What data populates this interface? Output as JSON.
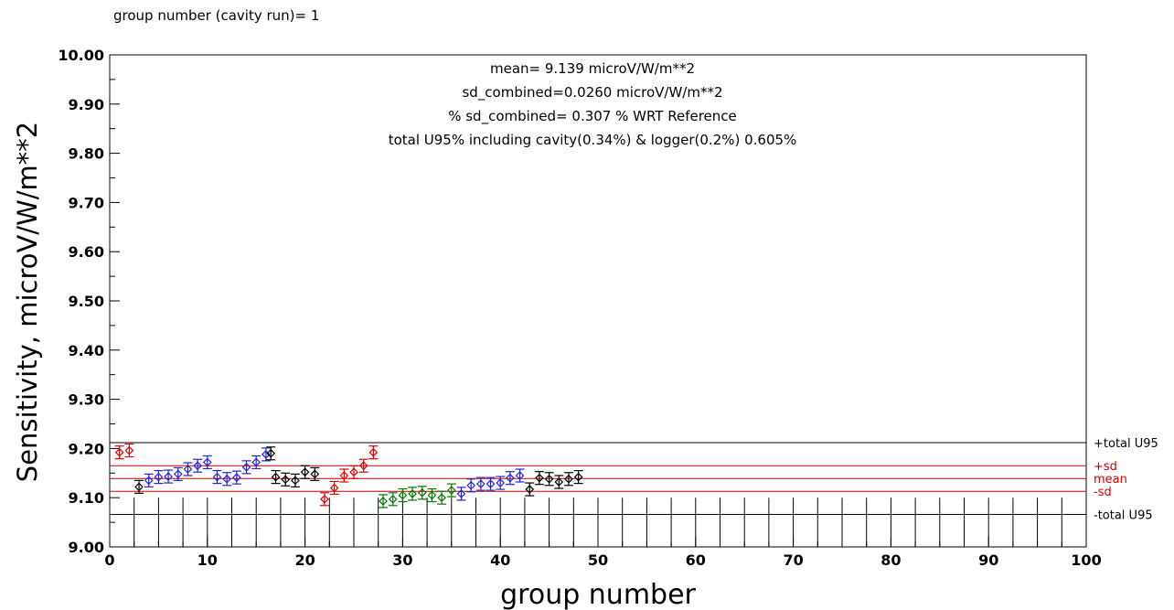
{
  "header": {
    "title": "group number (cavity run)= 1"
  },
  "stats": [
    "mean= 9.139 microV/W/m**2",
    "sd_combined=0.0260 microV/W/m**2",
    "% sd_combined= 0.307 % WRT Reference",
    "total U95% including cavity(0.34%) & logger(0.2%) 0.605%"
  ],
  "chart_data": {
    "type": "scatter",
    "title": "",
    "xlabel": "group number",
    "ylabel": "Sensitivity, microV/W/m**2",
    "xlim": [
      0,
      100
    ],
    "ylim": [
      9.0,
      10.0
    ],
    "x_ticks": [
      0,
      10,
      20,
      30,
      40,
      50,
      60,
      70,
      80,
      90,
      100
    ],
    "y_ticks": [
      9.0,
      9.1,
      9.2,
      9.3,
      9.4,
      9.5,
      9.6,
      9.7,
      9.8,
      9.9,
      10.0
    ],
    "x_tick_labels": [
      "0",
      "10",
      "20",
      "30",
      "40",
      "50",
      "60",
      "70",
      "80",
      "90",
      "100"
    ],
    "y_tick_labels": [
      "9.00",
      "9.10",
      "9.20",
      "9.30",
      "9.40",
      "9.50",
      "9.60",
      "9.70",
      "9.80",
      "9.90",
      "10.00"
    ],
    "grid": false,
    "reference_lines": [
      {
        "label": "+total U95",
        "value": 9.212,
        "color": "#000000"
      },
      {
        "label": "+sd",
        "value": 9.165,
        "color": "#cc0000"
      },
      {
        "label": "mean",
        "value": 9.139,
        "color": "#cc0000"
      },
      {
        "label": "-sd",
        "value": 9.113,
        "color": "#cc0000"
      },
      {
        "label": "-total U95",
        "value": 9.066,
        "color": "#000000"
      }
    ],
    "series": [
      {
        "color": "#e00000",
        "points": [
          [
            1,
            9.192
          ],
          [
            2,
            9.196
          ]
        ]
      },
      {
        "color": "#000000",
        "points": [
          [
            3,
            9.122
          ]
        ]
      },
      {
        "color": "#2222dd",
        "points": [
          [
            4,
            9.135
          ],
          [
            5,
            9.142
          ],
          [
            6,
            9.143
          ],
          [
            7,
            9.148
          ],
          [
            8,
            9.158
          ],
          [
            9,
            9.165
          ],
          [
            10,
            9.172
          ],
          [
            11,
            9.142
          ],
          [
            12,
            9.138
          ],
          [
            13,
            9.141
          ],
          [
            14,
            9.162
          ],
          [
            15,
            9.172
          ],
          [
            16,
            9.188
          ]
        ]
      },
      {
        "color": "#000000",
        "points": [
          [
            16.5,
            9.19
          ],
          [
            17,
            9.142
          ],
          [
            18,
            9.137
          ],
          [
            19,
            9.135
          ],
          [
            20,
            9.152
          ],
          [
            21,
            9.148
          ]
        ]
      },
      {
        "color": "#e00000",
        "points": [
          [
            22,
            9.097
          ],
          [
            23,
            9.12
          ],
          [
            24,
            9.145
          ],
          [
            25,
            9.152
          ],
          [
            26,
            9.165
          ],
          [
            27,
            9.192
          ]
        ]
      },
      {
        "color": "#007700",
        "points": [
          [
            28,
            9.093
          ],
          [
            29,
            9.097
          ],
          [
            30,
            9.105
          ],
          [
            31,
            9.108
          ],
          [
            32,
            9.11
          ],
          [
            33,
            9.105
          ],
          [
            34,
            9.1
          ],
          [
            35,
            9.115
          ]
        ]
      },
      {
        "color": "#2222dd",
        "points": [
          [
            36,
            9.108
          ],
          [
            37,
            9.125
          ],
          [
            38,
            9.128
          ],
          [
            39,
            9.128
          ],
          [
            40,
            9.13
          ],
          [
            41,
            9.14
          ],
          [
            42,
            9.145
          ]
        ]
      },
      {
        "color": "#000000",
        "points": [
          [
            43,
            9.117
          ],
          [
            44,
            9.14
          ],
          [
            45,
            9.138
          ],
          [
            46,
            9.132
          ],
          [
            47,
            9.138
          ],
          [
            48,
            9.142
          ]
        ]
      }
    ]
  }
}
